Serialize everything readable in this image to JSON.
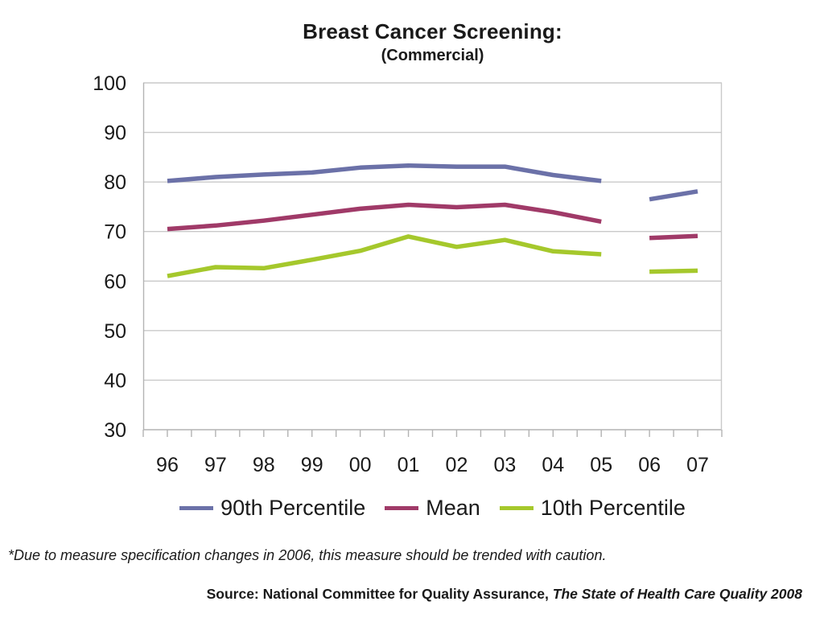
{
  "chart_data": {
    "type": "line",
    "title": "Breast Cancer Screening:",
    "subtitle": "(Commercial)",
    "categories": [
      "96",
      "97",
      "98",
      "99",
      "00",
      "01",
      "02",
      "03",
      "04",
      "05",
      "06",
      "07"
    ],
    "series": [
      {
        "name": "90th Percentile",
        "color": "#6B71A8",
        "values": [
          80.2,
          81.0,
          81.5,
          81.9,
          82.9,
          83.3,
          83.1,
          83.1,
          81.4,
          80.2,
          76.5,
          78.1
        ]
      },
      {
        "name": "Mean",
        "color": "#A03A68",
        "values": [
          70.5,
          71.2,
          72.2,
          73.4,
          74.6,
          75.4,
          74.9,
          75.4,
          73.9,
          72.0,
          68.7,
          69.1
        ]
      },
      {
        "name": "10th Percentile",
        "color": "#A5C82C",
        "values": [
          61.0,
          62.8,
          62.6,
          64.3,
          66.1,
          69.0,
          66.9,
          68.3,
          66.0,
          65.4,
          61.9,
          62.1
        ]
      }
    ],
    "ylim": [
      30,
      100
    ],
    "ytick_step": 10,
    "break_after_category": "05",
    "grid": "horizontal",
    "legend_position": "bottom",
    "gridline_color": "#c9c9c9",
    "axis_color": "#b3b3b3",
    "line_width": 5.5
  },
  "footnote": "*Due to measure specification changes in 2006, this measure should be trended with caution.",
  "source": {
    "prefix": "Source: National Committee for Quality Assurance, ",
    "title": "The State of Health Care Quality 2008"
  }
}
